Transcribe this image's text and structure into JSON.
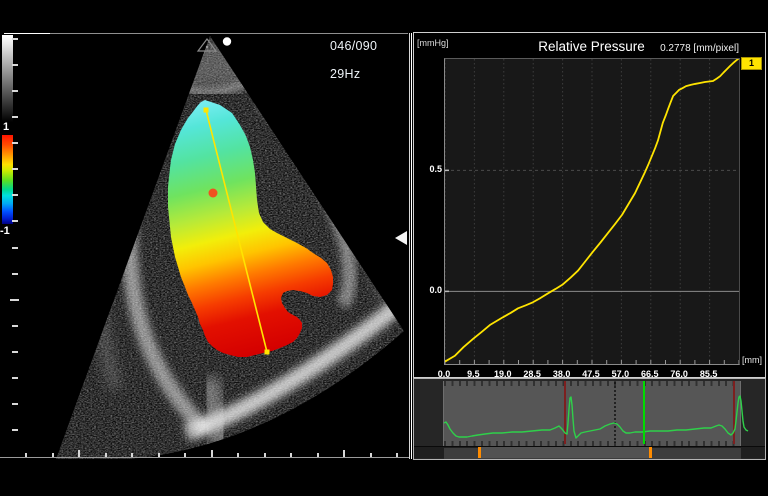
{
  "echo": {
    "frame_counter": "046/090",
    "frame_rate": "29Hz",
    "colorbar": {
      "max_label": "1",
      "min_label": "-1"
    }
  },
  "pressure_chart": {
    "title": "Relative Pressure",
    "y_unit": "[mmHg]",
    "x_unit": "[mm]",
    "scale": "0.2778 [mm/pixel]",
    "badge": "1"
  },
  "colors": {
    "curve_yellow": "#ffe400",
    "ecg_green": "#2fd04a",
    "cursor_green": "#00dd00",
    "marker_dark_red": "#7d1f1f",
    "scroll_orange": "#ff8c00",
    "badge_yellow": "#ffe300"
  },
  "chart_data": [
    {
      "id": "relative-pressure",
      "type": "line",
      "title": "Relative Pressure",
      "xlabel": "[mm]",
      "ylabel": "[mmHg]",
      "xlim": [
        0,
        95
      ],
      "ylim": [
        -0.3,
        0.96
      ],
      "grid": "dotted",
      "legend_position": "top-right",
      "note": "0.2778 [mm/pixel]",
      "x_ticks": [
        {
          "label": "0.0",
          "value": 0
        },
        {
          "label": "9.5",
          "value": 9.5
        },
        {
          "label": "19.0",
          "value": 19
        },
        {
          "label": "28.5",
          "value": 28.5
        },
        {
          "label": "38.0",
          "value": 38
        },
        {
          "label": "47.5",
          "value": 47.5
        },
        {
          "label": "57.0",
          "value": 57
        },
        {
          "label": "66.5",
          "value": 66.5
        },
        {
          "label": "76.0",
          "value": 76
        },
        {
          "label": "85.5",
          "value": 85.5
        }
      ],
      "y_ticks": [
        {
          "label": "0.5",
          "value": 0.5
        },
        {
          "label": "0.0",
          "value": 0
        }
      ],
      "series": [
        {
          "name": "1",
          "color": "#ffe400",
          "x": [
            0,
            3.2,
            6,
            9,
            11.8,
            14.5,
            16.6,
            18.7,
            21.2,
            23.6,
            26,
            28.4,
            30.9,
            33.3,
            35.7,
            38.1,
            40.6,
            43,
            45.4,
            47.8,
            50.3,
            52.7,
            55,
            57.2,
            59.3,
            61.4,
            63,
            64.6,
            65.8,
            66.9,
            67.9,
            68.8,
            69.6,
            70.4,
            71.3,
            72.1,
            72.9,
            73.7,
            74.7,
            75.6,
            76.8,
            77.9,
            79.4,
            80.8,
            82.4,
            84,
            85.3,
            86.6,
            87.8,
            88.9,
            90,
            91.1,
            92.1,
            93.1,
            94,
            95
          ],
          "y": [
            -0.29,
            -0.266,
            -0.23,
            -0.197,
            -0.168,
            -0.139,
            -0.123,
            -0.107,
            -0.089,
            -0.07,
            -0.058,
            -0.045,
            -0.027,
            -0.008,
            0.01,
            0.029,
            0.057,
            0.086,
            0.125,
            0.164,
            0.203,
            0.242,
            0.279,
            0.316,
            0.361,
            0.406,
            0.449,
            0.492,
            0.527,
            0.561,
            0.592,
            0.623,
            0.66,
            0.697,
            0.726,
            0.754,
            0.781,
            0.807,
            0.82,
            0.832,
            0.84,
            0.848,
            0.853,
            0.857,
            0.861,
            0.865,
            0.867,
            0.869,
            0.879,
            0.889,
            0.904,
            0.918,
            0.931,
            0.943,
            0.953,
            0.963
          ]
        }
      ]
    },
    {
      "id": "ecg-strip",
      "type": "line",
      "series": [
        {
          "name": "ecg",
          "color": "#2fd04a",
          "points": [
            [
              30,
              44
            ],
            [
              32,
              43
            ],
            [
              34,
              46
            ],
            [
              36,
              50
            ],
            [
              39,
              54
            ],
            [
              42,
              57
            ],
            [
              45,
              58
            ],
            [
              49,
              58
            ],
            [
              53,
              58
            ],
            [
              58,
              57
            ],
            [
              64,
              56
            ],
            [
              71,
              55
            ],
            [
              79,
              54
            ],
            [
              88,
              54
            ],
            [
              98,
              53
            ],
            [
              108,
              53
            ],
            [
              118,
              52
            ],
            [
              128,
              51
            ],
            [
              136,
              51
            ],
            [
              141,
              49
            ],
            [
              145,
              47
            ],
            [
              148,
              50
            ],
            [
              151,
              54
            ],
            [
              153,
              55
            ],
            [
              154,
              44
            ],
            [
              155,
              30
            ],
            [
              156,
              19
            ],
            [
              157,
              18
            ],
            [
              158,
              26
            ],
            [
              159,
              40
            ],
            [
              160,
              52
            ],
            [
              162,
              59
            ],
            [
              164,
              57
            ],
            [
              167,
              54
            ],
            [
              171,
              53
            ],
            [
              176,
              52
            ],
            [
              181,
              51
            ],
            [
              186,
              50
            ],
            [
              191,
              47
            ],
            [
              196,
              45
            ],
            [
              200,
              44
            ],
            [
              203,
              45
            ],
            [
              206,
              48
            ],
            [
              209,
              52
            ],
            [
              212,
              54
            ],
            [
              216,
              54
            ],
            [
              221,
              53
            ],
            [
              228,
              53
            ],
            [
              236,
              52
            ],
            [
              245,
              52
            ],
            [
              254,
              52
            ],
            [
              263,
              51
            ],
            [
              272,
              51
            ],
            [
              281,
              50
            ],
            [
              290,
              49
            ],
            [
              297,
              49
            ],
            [
              302,
              47
            ],
            [
              305,
              46
            ],
            [
              308,
              47
            ],
            [
              311,
              50
            ],
            [
              314,
              54
            ],
            [
              317,
              56
            ],
            [
              319,
              54
            ],
            [
              321,
              50
            ],
            [
              322,
              42
            ],
            [
              323,
              33
            ],
            [
              324,
              24
            ],
            [
              325,
              18
            ],
            [
              326,
              17
            ],
            [
              327,
              22
            ],
            [
              328,
              32
            ],
            [
              329,
              42
            ],
            [
              330,
              48
            ],
            [
              332,
              51
            ],
            [
              334,
              52
            ]
          ]
        }
      ],
      "markers": {
        "red_lines_x": [
          151,
          320
        ],
        "dotted_line_x": 201,
        "cursor_x": 230,
        "window_x": [
          30,
          327
        ],
        "scroll_markers_x": [
          65,
          236
        ]
      }
    }
  ]
}
